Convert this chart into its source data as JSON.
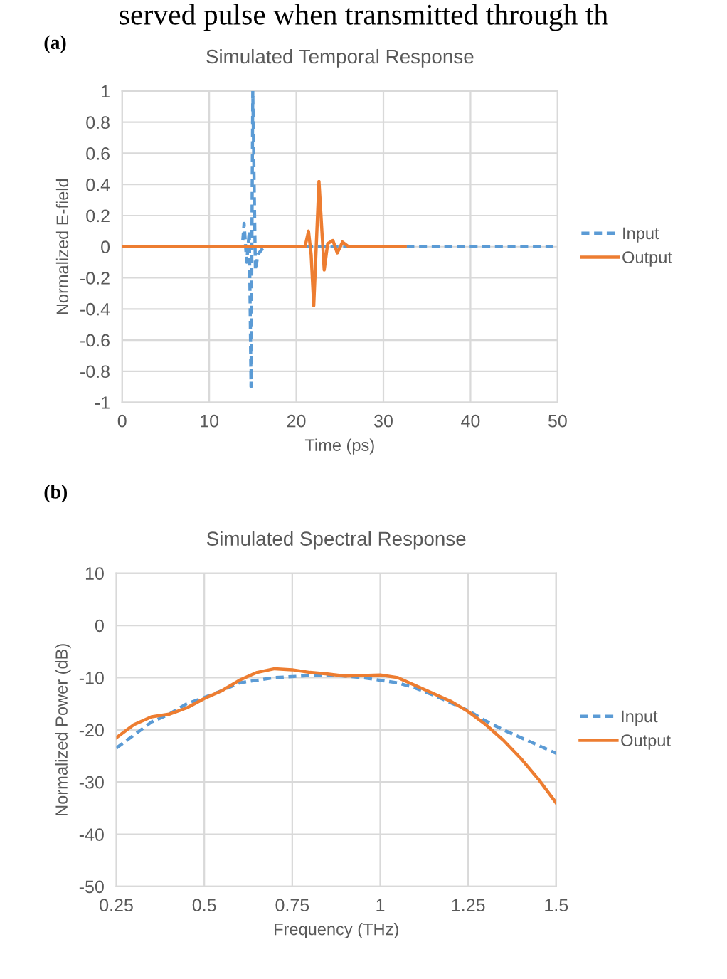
{
  "chart_data": [
    {
      "type": "line",
      "title": "Simulated Temporal Response",
      "xlabel": "Time (ps)",
      "ylabel": "Normalized E-field",
      "annotations": [
        "served pulse when transmitted through th",
        "(a)"
      ],
      "xlim": [
        0,
        50
      ],
      "xticks": [
        0,
        10,
        20,
        30,
        40,
        50
      ],
      "ylim": [
        -1,
        1
      ],
      "yticks": [
        -1,
        -0.8,
        -0.6,
        -0.4,
        -0.2,
        0,
        0.2,
        0.4,
        0.6,
        0.8,
        1
      ],
      "grid": true,
      "legend": "right",
      "series": [
        {
          "name": "Input",
          "color": "#5b9bd5",
          "line_style": "dashed",
          "x": [
            0,
            13.8,
            14.0,
            14.3,
            14.6,
            14.8,
            15.0,
            15.3,
            15.6,
            16.0,
            16.5,
            50
          ],
          "values": [
            0,
            0,
            0.15,
            -0.1,
            0.1,
            -0.9,
            1.0,
            -0.15,
            -0.05,
            -0.02,
            0,
            0
          ]
        },
        {
          "name": "Output",
          "color": "#ed7d31",
          "line_style": "solid",
          "x": [
            0,
            21.0,
            21.4,
            21.7,
            22.0,
            22.6,
            23.2,
            23.6,
            24.2,
            24.7,
            25.3,
            26.0,
            32.5
          ],
          "values": [
            0,
            0,
            0.1,
            -0.05,
            -0.38,
            0.42,
            -0.15,
            0.02,
            0.04,
            -0.04,
            0.03,
            0,
            0
          ]
        }
      ]
    },
    {
      "type": "line",
      "title": "Simulated Spectral Response",
      "xlabel": "Frequency (THz)",
      "ylabel": "Normalized Power (dB)",
      "annotations": [
        "(b)"
      ],
      "xlim": [
        0.25,
        1.5
      ],
      "xticks": [
        0.25,
        0.5,
        0.75,
        1,
        1.25,
        1.5
      ],
      "ylim": [
        -50,
        10
      ],
      "yticks": [
        -50,
        -40,
        -30,
        -20,
        -10,
        0,
        10
      ],
      "grid": true,
      "legend": "right",
      "series": [
        {
          "name": "Input",
          "color": "#5b9bd5",
          "line_style": "dashed",
          "x": [
            0.25,
            0.3,
            0.35,
            0.4,
            0.45,
            0.5,
            0.55,
            0.6,
            0.65,
            0.7,
            0.75,
            0.8,
            0.85,
            0.9,
            0.95,
            1.0,
            1.05,
            1.1,
            1.15,
            1.2,
            1.25,
            1.3,
            1.35,
            1.4,
            1.45,
            1.5
          ],
          "values": [
            -23.5,
            -21,
            -18.5,
            -17,
            -15,
            -13.8,
            -12.5,
            -11,
            -10.5,
            -10,
            -9.8,
            -9.6,
            -9.5,
            -9.7,
            -10,
            -10.5,
            -11,
            -12,
            -13.3,
            -14.8,
            -16.3,
            -18.3,
            -20,
            -21.5,
            -23,
            -24.5
          ]
        },
        {
          "name": "Output",
          "color": "#ed7d31",
          "line_style": "solid",
          "x": [
            0.25,
            0.3,
            0.35,
            0.4,
            0.45,
            0.5,
            0.55,
            0.6,
            0.65,
            0.7,
            0.75,
            0.8,
            0.85,
            0.9,
            0.95,
            1.0,
            1.05,
            1.1,
            1.15,
            1.2,
            1.25,
            1.3,
            1.35,
            1.4,
            1.45,
            1.5
          ],
          "values": [
            -21.5,
            -19,
            -17.5,
            -17,
            -15.8,
            -14,
            -12.5,
            -10.5,
            -9,
            -8.3,
            -8.5,
            -9,
            -9.3,
            -9.7,
            -9.6,
            -9.5,
            -10,
            -11.5,
            -13,
            -14.5,
            -16.5,
            -19,
            -22,
            -25.5,
            -29.5,
            -34
          ]
        }
      ]
    }
  ]
}
